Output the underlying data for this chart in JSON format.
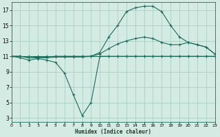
{
  "xlabel": "Humidex (Indice chaleur)",
  "bg_color": "#d4ebe4",
  "grid_color": "#a8cfc4",
  "line_color": "#1a6b5a",
  "xlim": [
    0,
    23
  ],
  "ylim": [
    2.5,
    18
  ],
  "yticks": [
    3,
    5,
    7,
    9,
    11,
    13,
    15,
    17
  ],
  "xticks": [
    0,
    1,
    2,
    3,
    4,
    5,
    6,
    7,
    8,
    9,
    10,
    11,
    12,
    13,
    14,
    15,
    16,
    17,
    18,
    19,
    20,
    21,
    22,
    23
  ],
  "series": [
    {
      "x": [
        0,
        1,
        2,
        3,
        4,
        5,
        6,
        7,
        8,
        9,
        10,
        11,
        12,
        13,
        14,
        15,
        16,
        17,
        18,
        19,
        20,
        21,
        22,
        23
      ],
      "y": [
        11,
        11,
        11,
        11,
        11,
        11,
        11,
        11,
        11,
        11,
        11,
        11,
        11,
        11,
        11,
        11,
        11,
        11,
        11,
        11,
        11,
        11,
        11,
        11
      ]
    },
    {
      "x": [
        0,
        1,
        2,
        3,
        4,
        5,
        6,
        7,
        8,
        9,
        10,
        11,
        12,
        13,
        14,
        15,
        16,
        17,
        18,
        19,
        20,
        21,
        22,
        23
      ],
      "y": [
        11,
        10.8,
        10.5,
        10.7,
        10.5,
        10.2,
        8.8,
        6.0,
        3.3,
        5.0,
        11,
        11,
        11,
        11,
        11,
        11,
        11,
        11,
        11,
        11,
        11,
        11,
        11,
        11
      ]
    },
    {
      "x": [
        0,
        1,
        2,
        3,
        4,
        5,
        6,
        7,
        8,
        9,
        10,
        11,
        12,
        13,
        14,
        15,
        16,
        17,
        18,
        19,
        20,
        21,
        22,
        23
      ],
      "y": [
        11,
        11,
        10.8,
        10.8,
        10.8,
        10.9,
        10.9,
        10.9,
        10.9,
        11,
        11.3,
        12.0,
        12.6,
        13.0,
        13.3,
        13.5,
        13.3,
        12.8,
        12.5,
        12.5,
        12.8,
        12.5,
        12.2,
        11.3
      ]
    },
    {
      "x": [
        0,
        1,
        2,
        3,
        4,
        5,
        6,
        7,
        8,
        9,
        10,
        11,
        12,
        13,
        14,
        15,
        16,
        17,
        18,
        19,
        20,
        21,
        22,
        23
      ],
      "y": [
        11,
        11,
        10.8,
        10.9,
        10.9,
        11.0,
        11.0,
        11.0,
        11.0,
        11,
        11.5,
        13.5,
        15.0,
        16.8,
        17.3,
        17.5,
        17.5,
        16.8,
        15.0,
        13.5,
        12.8,
        12.5,
        12.2,
        11.3
      ]
    }
  ]
}
